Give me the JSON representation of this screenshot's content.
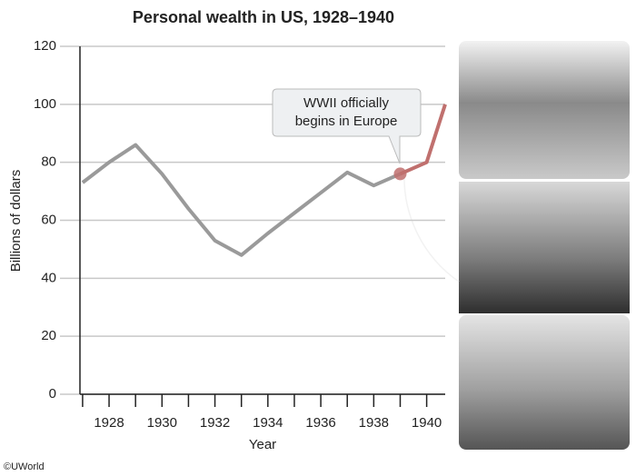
{
  "chart_data": {
    "type": "line",
    "title": "Personal wealth in US, 1928–1940",
    "x_label": "Year",
    "y_label": "Billions of dollars",
    "annotation": "WWII officially begins in Europe",
    "credit": "©UWorld",
    "series": [
      {
        "color": "#9a9a9a",
        "x": [
          1927,
          1928,
          1929,
          1930,
          1931,
          1932,
          1933,
          1934,
          1935,
          1936,
          1937,
          1938,
          1939
        ],
        "values": [
          73,
          80,
          86,
          76,
          64,
          53,
          48,
          55.5,
          62.5,
          69.5,
          76.5,
          72,
          76
        ]
      },
      {
        "color": "#c0706e",
        "x": [
          1939,
          1940,
          1940.7
        ],
        "values": [
          76,
          80,
          100
        ]
      }
    ],
    "xlim": [
      1926.9,
      1940.7
    ],
    "ylim": [
      0,
      120
    ],
    "xticks": [
      1928,
      1930,
      1932,
      1934,
      1936,
      1938,
      1940
    ],
    "xminor_ticks": [
      1927,
      1929,
      1931,
      1933,
      1935,
      1937,
      1939
    ],
    "yticks": [
      0,
      20,
      40,
      60,
      80,
      100,
      120
    ],
    "grid": true
  }
}
